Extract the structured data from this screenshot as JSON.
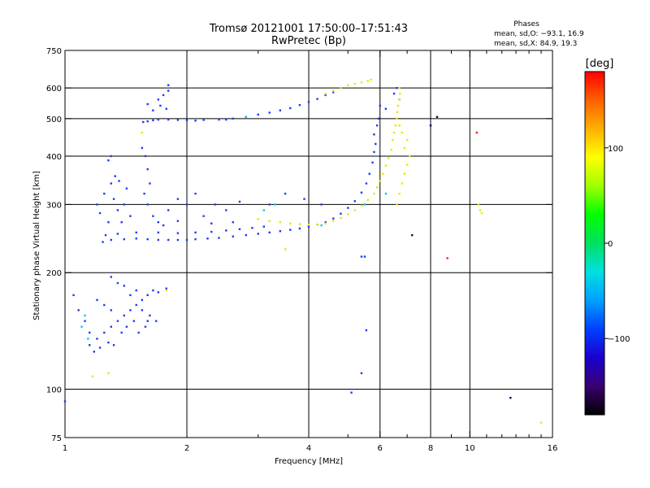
{
  "chart_data": {
    "type": "scatter",
    "title": "Tromsø 20121001 17:50:00–17:51:43",
    "subtitle": "RwPretec (Bp)",
    "xlabel": "Frequency [MHz]",
    "ylabel": "Stationary phase Virtual Height [km]",
    "x_scale": "log",
    "y_scale": "log",
    "xlim": [
      1,
      16
    ],
    "ylim": [
      75,
      750
    ],
    "x_ticks": [
      1,
      2,
      4,
      6,
      8,
      10,
      16
    ],
    "x_tick_labels": [
      "1",
      "2",
      "4",
      "6",
      "8",
      "10",
      "16"
    ],
    "x_minor_ticks": [
      3,
      5,
      7,
      9,
      11,
      12,
      13,
      14,
      15
    ],
    "y_ticks": [
      75,
      100,
      200,
      300,
      400,
      500,
      600,
      750
    ],
    "y_tick_labels": [
      "75",
      "100",
      "200",
      "300",
      "400",
      "500",
      "600",
      "750"
    ],
    "grid": true,
    "x_grid_lines": [
      2,
      4,
      6,
      8,
      10
    ],
    "y_grid_lines": [
      100,
      200,
      300,
      400,
      500,
      600
    ],
    "phase_stats": {
      "title": "Phases",
      "line_o": "mean, sd,O: −93.1, 16.9",
      "line_x": "mean, sd,X:  84.9, 19.3"
    },
    "colorbar": {
      "label": "[deg]",
      "range": [
        -180,
        180
      ],
      "ticks": [
        100,
        0,
        -100
      ],
      "tick_labels": [
        "100",
        "0",
        "−100"
      ],
      "colormap": [
        "#000000",
        "#3a0070",
        "#1a00d0",
        "#0040ff",
        "#00a0ff",
        "#00e0e0",
        "#00e060",
        "#00ff00",
        "#a0ff00",
        "#ffff00",
        "#ffb000",
        "#ff6000",
        "#ff0000"
      ]
    },
    "series": [
      {
        "mode": "O",
        "phase_deg": -100,
        "color": "#1a3cff",
        "points": [
          [
            1.24,
            240
          ],
          [
            1.3,
            243
          ],
          [
            1.4,
            244
          ],
          [
            1.5,
            245
          ],
          [
            1.6,
            244
          ],
          [
            1.7,
            243
          ],
          [
            1.8,
            243
          ],
          [
            1.9,
            243
          ],
          [
            2.0,
            243
          ],
          [
            2.1,
            244
          ],
          [
            2.25,
            245
          ],
          [
            2.4,
            246
          ],
          [
            2.6,
            248
          ],
          [
            2.8,
            250
          ],
          [
            3.0,
            252
          ],
          [
            3.2,
            254
          ],
          [
            3.4,
            256
          ],
          [
            3.6,
            258
          ],
          [
            3.8,
            260
          ],
          [
            4.0,
            263
          ],
          [
            4.2,
            266
          ],
          [
            4.4,
            270
          ],
          [
            4.6,
            276
          ],
          [
            4.8,
            284
          ],
          [
            5.0,
            294
          ],
          [
            5.2,
            306
          ],
          [
            5.4,
            322
          ],
          [
            5.55,
            340
          ],
          [
            5.65,
            360
          ],
          [
            5.75,
            385
          ],
          [
            5.8,
            410
          ],
          [
            5.85,
            430
          ],
          [
            1.26,
            250
          ],
          [
            1.35,
            252
          ],
          [
            1.5,
            254
          ],
          [
            1.7,
            254
          ],
          [
            1.9,
            253
          ],
          [
            2.1,
            254
          ],
          [
            2.3,
            255
          ],
          [
            2.5,
            257
          ],
          [
            2.7,
            259
          ],
          [
            2.9,
            261
          ],
          [
            3.1,
            263
          ],
          [
            1.56,
            490
          ],
          [
            1.6,
            492
          ],
          [
            1.65,
            495
          ],
          [
            1.7,
            497
          ],
          [
            1.8,
            497
          ],
          [
            1.9,
            496
          ],
          [
            2.0,
            495
          ],
          [
            2.1,
            494
          ],
          [
            2.2,
            496
          ],
          [
            2.4,
            497
          ],
          [
            2.5,
            497
          ],
          [
            2.6,
            500
          ],
          [
            2.8,
            505
          ],
          [
            3.0,
            512
          ],
          [
            3.2,
            518
          ],
          [
            3.4,
            525
          ],
          [
            3.6,
            532
          ],
          [
            3.8,
            542
          ],
          [
            4.0,
            552
          ],
          [
            4.2,
            562
          ],
          [
            4.4,
            575
          ],
          [
            4.6,
            585
          ],
          [
            1.6,
            545
          ],
          [
            1.7,
            560
          ],
          [
            1.75,
            575
          ],
          [
            1.8,
            590
          ],
          [
            1.8,
            610
          ],
          [
            1.65,
            525
          ],
          [
            1.72,
            540
          ],
          [
            1.78,
            530
          ],
          [
            1.55,
            420
          ],
          [
            1.58,
            400
          ],
          [
            1.6,
            370
          ],
          [
            1.62,
            340
          ],
          [
            1.57,
            320
          ],
          [
            1.6,
            300
          ],
          [
            1.65,
            280
          ],
          [
            1.7,
            270
          ],
          [
            1.8,
            290
          ],
          [
            1.9,
            310
          ],
          [
            2.0,
            300
          ],
          [
            2.1,
            320
          ],
          [
            2.2,
            280
          ],
          [
            2.35,
            300
          ],
          [
            2.5,
            290
          ],
          [
            2.7,
            305
          ],
          [
            3.2,
            300
          ],
          [
            3.5,
            320
          ],
          [
            3.9,
            310
          ],
          [
            4.3,
            300
          ],
          [
            2.6,
            270
          ],
          [
            2.3,
            268
          ],
          [
            1.9,
            272
          ],
          [
            1.75,
            265
          ],
          [
            1.2,
            300
          ],
          [
            1.25,
            320
          ],
          [
            1.3,
            340
          ],
          [
            1.32,
            310
          ],
          [
            1.35,
            290
          ],
          [
            1.38,
            270
          ],
          [
            1.4,
            300
          ],
          [
            1.42,
            330
          ],
          [
            1.45,
            280
          ],
          [
            1.28,
            270
          ],
          [
            1.22,
            285
          ],
          [
            1.33,
            355
          ],
          [
            1.36,
            345
          ],
          [
            1.3,
            400
          ],
          [
            1.28,
            390
          ],
          [
            1.05,
            175
          ],
          [
            1.08,
            160
          ],
          [
            1.12,
            150
          ],
          [
            1.15,
            140
          ],
          [
            1.2,
            135
          ],
          [
            1.25,
            140
          ],
          [
            1.3,
            145
          ],
          [
            1.35,
            150
          ],
          [
            1.4,
            155
          ],
          [
            1.45,
            160
          ],
          [
            1.5,
            165
          ],
          [
            1.55,
            170
          ],
          [
            1.6,
            175
          ],
          [
            1.65,
            180
          ],
          [
            1.7,
            178
          ],
          [
            1.78,
            182
          ],
          [
            1.2,
            170
          ],
          [
            1.25,
            165
          ],
          [
            1.3,
            160
          ],
          [
            1.32,
            130
          ],
          [
            1.38,
            140
          ],
          [
            1.42,
            145
          ],
          [
            1.48,
            150
          ],
          [
            1.52,
            140
          ],
          [
            1.58,
            145
          ],
          [
            1.62,
            155
          ],
          [
            1.68,
            150
          ],
          [
            1.15,
            130
          ],
          [
            1.18,
            125
          ],
          [
            1.22,
            128
          ],
          [
            1.28,
            132
          ],
          [
            1.3,
            195
          ],
          [
            1.35,
            188
          ],
          [
            1.4,
            185
          ],
          [
            1.45,
            175
          ],
          [
            1.5,
            180
          ],
          [
            1.55,
            160
          ],
          [
            1.6,
            150
          ],
          [
            1.0,
            93
          ],
          [
            5.4,
            220
          ],
          [
            5.5,
            220
          ],
          [
            5.55,
            142
          ],
          [
            5.1,
            98
          ],
          [
            5.4,
            110
          ],
          [
            5.8,
            455
          ],
          [
            5.9,
            480
          ],
          [
            5.95,
            500
          ],
          [
            6.0,
            540
          ],
          [
            6.2,
            530
          ],
          [
            6.5,
            580
          ],
          [
            6.6,
            600
          ],
          [
            6.7,
            560
          ]
        ]
      },
      {
        "mode": "X",
        "phase_deg": 85,
        "color": "#e8e800",
        "points": [
          [
            3.0,
            275
          ],
          [
            3.2,
            272
          ],
          [
            3.4,
            270
          ],
          [
            3.6,
            268
          ],
          [
            3.8,
            267
          ],
          [
            4.0,
            266
          ],
          [
            4.2,
            266
          ],
          [
            4.4,
            268
          ],
          [
            4.6,
            272
          ],
          [
            4.8,
            277
          ],
          [
            5.0,
            283
          ],
          [
            5.2,
            290
          ],
          [
            5.4,
            298
          ],
          [
            5.6,
            308
          ],
          [
            5.8,
            320
          ],
          [
            5.9,
            332
          ],
          [
            6.0,
            345
          ],
          [
            6.1,
            360
          ],
          [
            6.2,
            378
          ],
          [
            6.3,
            395
          ],
          [
            6.4,
            415
          ],
          [
            6.45,
            440
          ],
          [
            6.5,
            460
          ],
          [
            6.55,
            480
          ],
          [
            6.6,
            500
          ],
          [
            6.62,
            520
          ],
          [
            6.65,
            540
          ],
          [
            6.7,
            560
          ],
          [
            6.72,
            580
          ],
          [
            6.7,
            600
          ],
          [
            4.8,
            600
          ],
          [
            5.0,
            610
          ],
          [
            5.2,
            615
          ],
          [
            5.4,
            620
          ],
          [
            5.6,
            625
          ],
          [
            5.7,
            630
          ],
          [
            4.4,
            580
          ],
          [
            4.6,
            590
          ],
          [
            6.6,
            300
          ],
          [
            6.7,
            320
          ],
          [
            6.8,
            340
          ],
          [
            6.9,
            360
          ],
          [
            7.0,
            380
          ],
          [
            7.1,
            400
          ],
          [
            6.9,
            420
          ],
          [
            7.0,
            440
          ],
          [
            6.8,
            460
          ],
          [
            6.7,
            480
          ],
          [
            10.5,
            300
          ],
          [
            10.6,
            290
          ],
          [
            10.7,
            285
          ],
          [
            1.55,
            460
          ],
          [
            1.78,
            180
          ],
          [
            1.17,
            108
          ],
          [
            1.28,
            110
          ],
          [
            15,
            82
          ],
          [
            3.5,
            230
          ]
        ]
      },
      {
        "mode": "misc",
        "phase_deg": -30,
        "color": "#00c8ff",
        "points": [
          [
            1.1,
            145
          ],
          [
            1.12,
            155
          ],
          [
            1.14,
            135
          ],
          [
            2.8,
            505
          ],
          [
            3.1,
            290
          ],
          [
            3.3,
            300
          ],
          [
            4.3,
            265
          ],
          [
            5.5,
            300
          ],
          [
            6.2,
            320
          ]
        ]
      },
      {
        "mode": "misc",
        "phase_deg": 150,
        "color": "#ff2000",
        "points": [
          [
            10.4,
            460
          ],
          [
            8.8,
            218
          ]
        ]
      },
      {
        "mode": "misc",
        "phase_deg": -150,
        "color": "#1a0060",
        "points": [
          [
            7.2,
            250
          ],
          [
            12.6,
            95
          ],
          [
            8.3,
            505
          ],
          [
            8.0,
            480
          ]
        ]
      }
    ]
  }
}
